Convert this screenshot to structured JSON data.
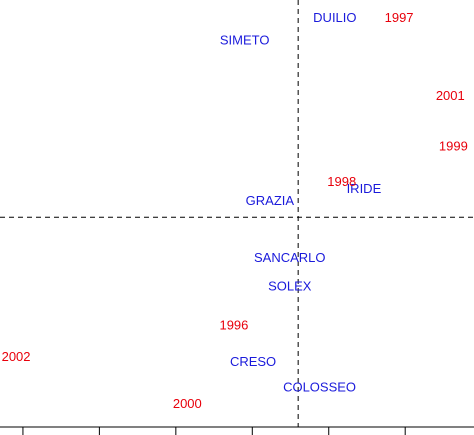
{
  "chart_data": {
    "type": "scatter",
    "title": "",
    "xlabel": "",
    "ylabel": "",
    "grid": false,
    "legend": "none",
    "xlim": [
      -3.9,
      2.3
    ],
    "ylim": [
      -2.8,
      2.9
    ],
    "reference_lines": {
      "x": 0,
      "y": 0,
      "style": "dashed"
    },
    "x_ticks": [
      -3.6,
      -2.6,
      -1.6,
      -0.6,
      0.4,
      1.4
    ],
    "colors": {
      "genotypes": "#1a1adb",
      "years": "#e8000b"
    },
    "series": [
      {
        "name": "",
        "color": "#1a1adb",
        "points": [
          {
            "label": "DUILIO",
            "x": 0.48,
            "y": 2.65
          },
          {
            "label": "SIMETO",
            "x": -0.7,
            "y": 2.35
          },
          {
            "label": "IRIDE",
            "x": 0.86,
            "y": 0.37
          },
          {
            "label": "GRAZIA",
            "x": -0.37,
            "y": 0.21
          },
          {
            "label": "SANCARLO",
            "x": -0.11,
            "y": -0.55
          },
          {
            "label": "SOLEX",
            "x": -0.11,
            "y": -0.93
          },
          {
            "label": "CRESO",
            "x": -0.59,
            "y": -1.94
          },
          {
            "label": "COLOSSEO",
            "x": 0.28,
            "y": -2.28
          }
        ]
      },
      {
        "name": "",
        "color": "#e8000b",
        "points": [
          {
            "label": "1997",
            "x": 1.32,
            "y": 2.65
          },
          {
            "label": "2001",
            "x": 1.99,
            "y": 1.61
          },
          {
            "label": "1999",
            "x": 2.03,
            "y": 0.94
          },
          {
            "label": "1998",
            "x": 0.57,
            "y": 0.46
          },
          {
            "label": "1996",
            "x": -0.84,
            "y": -1.45
          },
          {
            "label": "2002",
            "x": -3.69,
            "y": -1.87
          },
          {
            "label": "2000",
            "x": -1.45,
            "y": -2.5
          }
        ]
      }
    ]
  }
}
